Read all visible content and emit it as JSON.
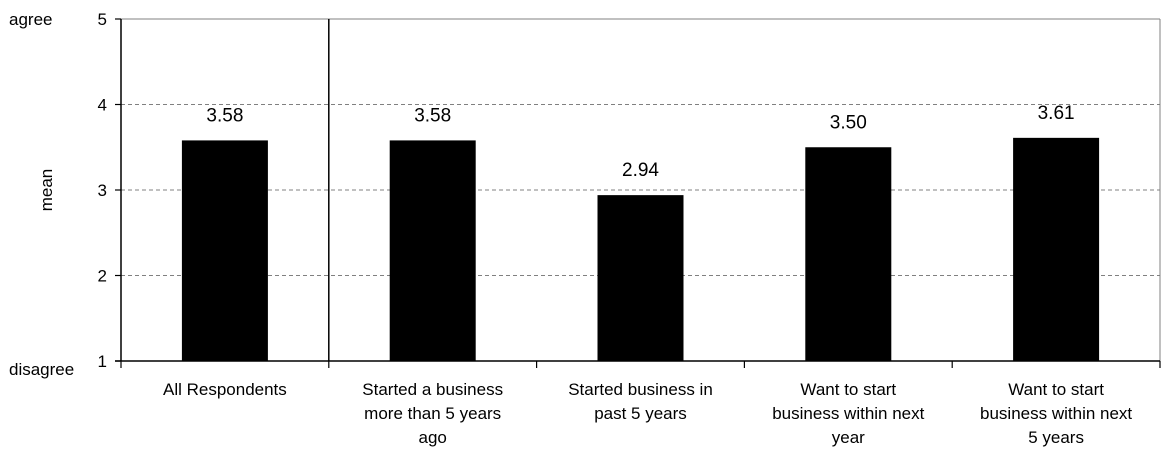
{
  "chart_data": {
    "type": "bar",
    "categories": [
      "All Respondents",
      "Started a business more than 5 years ago",
      "Started business in past 5 years",
      "Want to start business within next year",
      "Want to start business within next 5 years"
    ],
    "category_lines": [
      [
        "All Respondents"
      ],
      [
        "Started a business",
        "more than 5 years",
        "ago"
      ],
      [
        "Started business in",
        "past 5 years"
      ],
      [
        "Want to start",
        "business within next",
        "year"
      ],
      [
        "Want to start",
        "business within next",
        "5 years"
      ]
    ],
    "values": [
      3.58,
      3.58,
      2.94,
      3.5,
      3.61
    ],
    "data_labels": [
      "3.58",
      "3.58",
      "2.94",
      "3.50",
      "3.61"
    ],
    "ylabel": "mean",
    "ylim": [
      1,
      5
    ],
    "yticks": [
      "1",
      "2",
      "3",
      "4",
      "5"
    ],
    "ytick_annotations": {
      "top": "agree",
      "bottom": "disagree"
    },
    "bar_color": "#000000",
    "grid": "dashed horizontal",
    "separator_after_category": 0
  }
}
